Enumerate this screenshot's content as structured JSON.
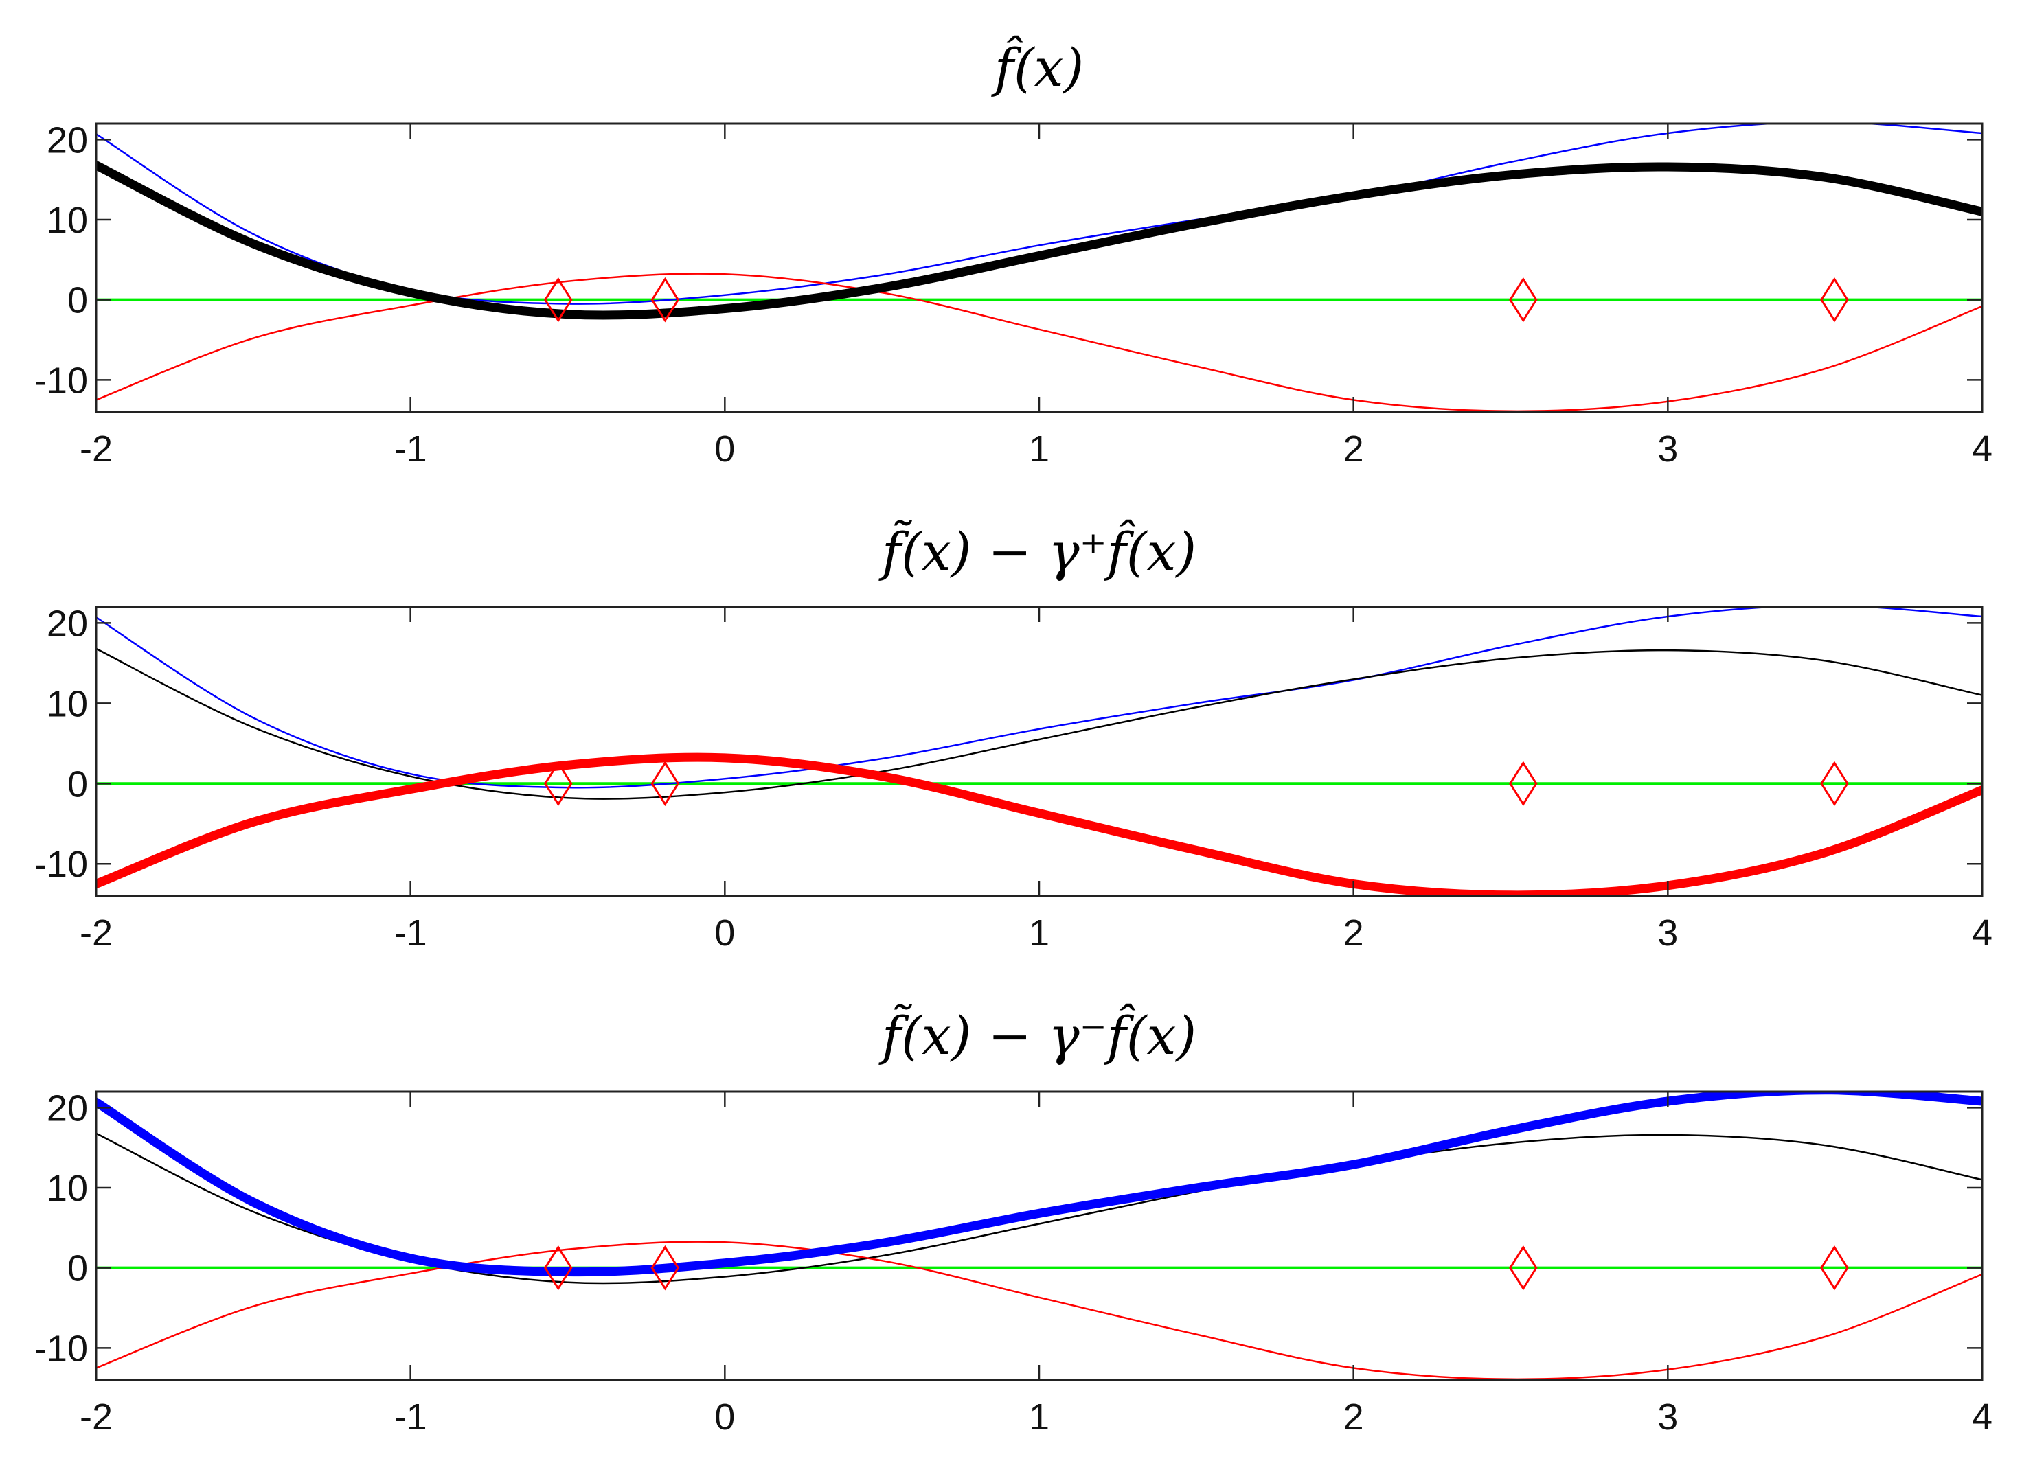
{
  "chart_data": [
    {
      "type": "line",
      "title": "f̂(x)",
      "xlim": [
        -2,
        4
      ],
      "ylim": [
        -14,
        22
      ],
      "xticks": [
        -2,
        -1,
        0,
        1,
        2,
        3,
        4
      ],
      "yticks": [
        -10,
        0,
        10,
        20
      ],
      "xtick_labels": [
        "-2",
        "-1",
        "0",
        "1",
        "2",
        "3",
        "4"
      ],
      "ytick_labels": [
        "-10",
        "0",
        "10",
        "20"
      ],
      "grid": false,
      "highlight": "black",
      "series": [
        {
          "color": "#0000ff",
          "x": [
            -2,
            -1.5,
            -1,
            -0.5,
            0,
            0.5,
            1,
            1.5,
            2,
            2.5,
            3,
            3.5,
            4
          ],
          "y": [
            20.7,
            8.2,
            1.2,
            -0.5,
            0.6,
            3.1,
            6.8,
            10,
            12.9,
            17.2,
            20.8,
            22.2,
            20.8
          ]
        },
        {
          "color": "#000000",
          "x": [
            -2,
            -1.5,
            -1,
            -0.5,
            0,
            0.5,
            1,
            1.5,
            2,
            2.5,
            3,
            3.5,
            4
          ],
          "y": [
            16.8,
            7,
            0.9,
            -1.8,
            -1.1,
            1.5,
            5.5,
            9.5,
            13,
            15.6,
            16.6,
            15.3,
            11
          ]
        },
        {
          "color": "#ff0000",
          "x": [
            -2,
            -1.5,
            -1,
            -0.5,
            0,
            0.5,
            1,
            1.5,
            2,
            2.5,
            3,
            3.5,
            4
          ],
          "y": [
            -12.5,
            -4.8,
            -0.7,
            2.3,
            3.2,
            0.9,
            -3.7,
            -8.3,
            -12.5,
            -13.9,
            -12.7,
            -8.6,
            -0.8
          ]
        },
        {
          "color": "#00ee00",
          "x": [
            -2,
            4
          ],
          "y": [
            0,
            0
          ]
        }
      ],
      "markers": {
        "color": "#ff0000",
        "x": [
          -0.53,
          -0.19,
          2.54,
          3.53
        ],
        "y": [
          0,
          0,
          0,
          0
        ]
      }
    },
    {
      "type": "line",
      "title": "f̃(x) − γ⁺f̂(x)",
      "xlim": [
        -2,
        4
      ],
      "ylim": [
        -14,
        22
      ],
      "xticks": [
        -2,
        -1,
        0,
        1,
        2,
        3,
        4
      ],
      "yticks": [
        -10,
        0,
        10,
        20
      ],
      "xtick_labels": [
        "-2",
        "-1",
        "0",
        "1",
        "2",
        "3",
        "4"
      ],
      "ytick_labels": [
        "-10",
        "0",
        "10",
        "20"
      ],
      "grid": false,
      "highlight": "red",
      "series": [
        {
          "color": "#0000ff",
          "x": [
            -2,
            -1.5,
            -1,
            -0.5,
            0,
            0.5,
            1,
            1.5,
            2,
            2.5,
            3,
            3.5,
            4
          ],
          "y": [
            20.7,
            8.2,
            1.2,
            -0.5,
            0.6,
            3.1,
            6.8,
            10,
            12.9,
            17.2,
            20.8,
            22.2,
            20.8
          ]
        },
        {
          "color": "#000000",
          "x": [
            -2,
            -1.5,
            -1,
            -0.5,
            0,
            0.5,
            1,
            1.5,
            2,
            2.5,
            3,
            3.5,
            4
          ],
          "y": [
            16.8,
            7,
            0.9,
            -1.8,
            -1.1,
            1.5,
            5.5,
            9.5,
            13,
            15.6,
            16.6,
            15.3,
            11
          ]
        },
        {
          "color": "#ff0000",
          "x": [
            -2,
            -1.5,
            -1,
            -0.5,
            0,
            0.5,
            1,
            1.5,
            2,
            2.5,
            3,
            3.5,
            4
          ],
          "y": [
            -12.5,
            -4.8,
            -0.7,
            2.3,
            3.2,
            0.9,
            -3.7,
            -8.3,
            -12.5,
            -13.9,
            -12.7,
            -8.6,
            -0.8
          ]
        },
        {
          "color": "#00ee00",
          "x": [
            -2,
            4
          ],
          "y": [
            0,
            0
          ]
        }
      ],
      "markers": {
        "color": "#ff0000",
        "x": [
          -0.53,
          -0.19,
          2.54,
          3.53
        ],
        "y": [
          0,
          0,
          0,
          0
        ]
      }
    },
    {
      "type": "line",
      "title": "f̃(x) − γ⁻f̂(x)",
      "xlim": [
        -2,
        4
      ],
      "ylim": [
        -14,
        22
      ],
      "xticks": [
        -2,
        -1,
        0,
        1,
        2,
        3,
        4
      ],
      "yticks": [
        -10,
        0,
        10,
        20
      ],
      "xtick_labels": [
        "-2",
        "-1",
        "0",
        "1",
        "2",
        "3",
        "4"
      ],
      "ytick_labels": [
        "-10",
        "0",
        "10",
        "20"
      ],
      "grid": false,
      "highlight": "blue",
      "series": [
        {
          "color": "#0000ff",
          "x": [
            -2,
            -1.5,
            -1,
            -0.5,
            0,
            0.5,
            1,
            1.5,
            2,
            2.5,
            3,
            3.5,
            4
          ],
          "y": [
            20.7,
            8.2,
            1.2,
            -0.5,
            0.6,
            3.1,
            6.8,
            10,
            12.9,
            17.2,
            20.8,
            22.2,
            20.8
          ]
        },
        {
          "color": "#000000",
          "x": [
            -2,
            -1.5,
            -1,
            -0.5,
            0,
            0.5,
            1,
            1.5,
            2,
            2.5,
            3,
            3.5,
            4
          ],
          "y": [
            16.8,
            7,
            0.9,
            -1.8,
            -1.1,
            1.5,
            5.5,
            9.5,
            13,
            15.6,
            16.6,
            15.3,
            11
          ]
        },
        {
          "color": "#ff0000",
          "x": [
            -2,
            -1.5,
            -1,
            -0.5,
            0,
            0.5,
            1,
            1.5,
            2,
            2.5,
            3,
            3.5,
            4
          ],
          "y": [
            -12.5,
            -4.8,
            -0.7,
            2.3,
            3.2,
            0.9,
            -3.7,
            -8.3,
            -12.5,
            -13.9,
            -12.7,
            -8.6,
            -0.8
          ]
        },
        {
          "color": "#00ee00",
          "x": [
            -2,
            4
          ],
          "y": [
            0,
            0
          ]
        }
      ],
      "markers": {
        "color": "#ff0000",
        "x": [
          -0.53,
          -0.19,
          2.54,
          3.53
        ],
        "y": [
          0,
          0,
          0,
          0
        ]
      }
    }
  ]
}
